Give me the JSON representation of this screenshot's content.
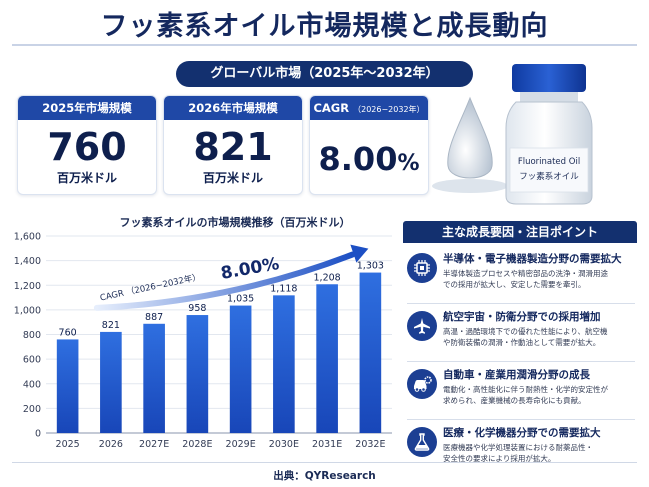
{
  "title": "フッ素系オイル市場規模と成長動向",
  "subtitle": "グローバル市場（2025年〜2032年）",
  "kpis": {
    "k2025": {
      "label": "2025年市場規模",
      "value": "760",
      "unit": "百万米ドル"
    },
    "k2026": {
      "label": "2026年市場規模",
      "value": "821",
      "unit": "百万米ドル"
    },
    "cagr": {
      "label": "CAGR",
      "period": "（2026−2032年）",
      "value": "8.00",
      "unit": "%"
    }
  },
  "bottle": {
    "label_en": "Fluorinated Oil",
    "label_ja": "フッ素系オイル"
  },
  "chart_title": "フッ素系オイルの市場規模推移（百万米ドル）",
  "chart_data": {
    "type": "bar",
    "title": "フッ素系オイルの市場規模推移（百万米ドル）",
    "categories": [
      "2025",
      "2026",
      "2027E",
      "2028E",
      "2029E",
      "2030E",
      "2031E",
      "2032E"
    ],
    "values": [
      760,
      821,
      887,
      958,
      1035,
      1118,
      1208,
      1303
    ],
    "value_labels": [
      "760",
      "821",
      "887",
      "958",
      "1,035",
      "1,118",
      "1,208",
      "1,303"
    ],
    "yticks": [
      "0",
      "200",
      "400",
      "600",
      "800",
      "1,000",
      "1,200",
      "1,400",
      "1,600"
    ],
    "ylim": [
      0,
      1600
    ],
    "grid": true,
    "annotation": {
      "label": "CAGR",
      "period": "（2026−2032年）",
      "value": "8.00%"
    }
  },
  "factors": {
    "heading": "主な成長要因・注目ポイント",
    "items": [
      {
        "icon": "chip-icon",
        "title": "半導体・電子機器製造分野の需要拡大",
        "desc1": "半導体製造プロセスや精密部品の洗浄・潤滑用途",
        "desc2": "での採用が拡大し、安定した需要を牽引。"
      },
      {
        "icon": "airplane-icon",
        "title": "航空宇宙・防衛分野での採用増加",
        "desc1": "高温・過酷環境下での優れた性能により、航空機",
        "desc2": "や防衛装備の潤滑・作動油として需要が拡大。"
      },
      {
        "icon": "car-gear-icon",
        "title": "自動車・産業用潤滑分野の成長",
        "desc1": "電動化・高性能化に伴う耐熱性・化学的安定性が",
        "desc2": "求められ、産業機械の長寿命化にも貢献。"
      },
      {
        "icon": "flask-icon",
        "title": "医療・化学機器分野での需要拡大",
        "desc1": "医療機器や化学処理装置における耐薬品性・",
        "desc2": "安全性の要求により採用が拡大。"
      }
    ]
  },
  "source": "出典：QYResearch",
  "colors": {
    "navy": "#13306f",
    "blue": "#1f48a6",
    "bar_top": "#2f6fe0",
    "bar_bottom": "#1846b8"
  }
}
